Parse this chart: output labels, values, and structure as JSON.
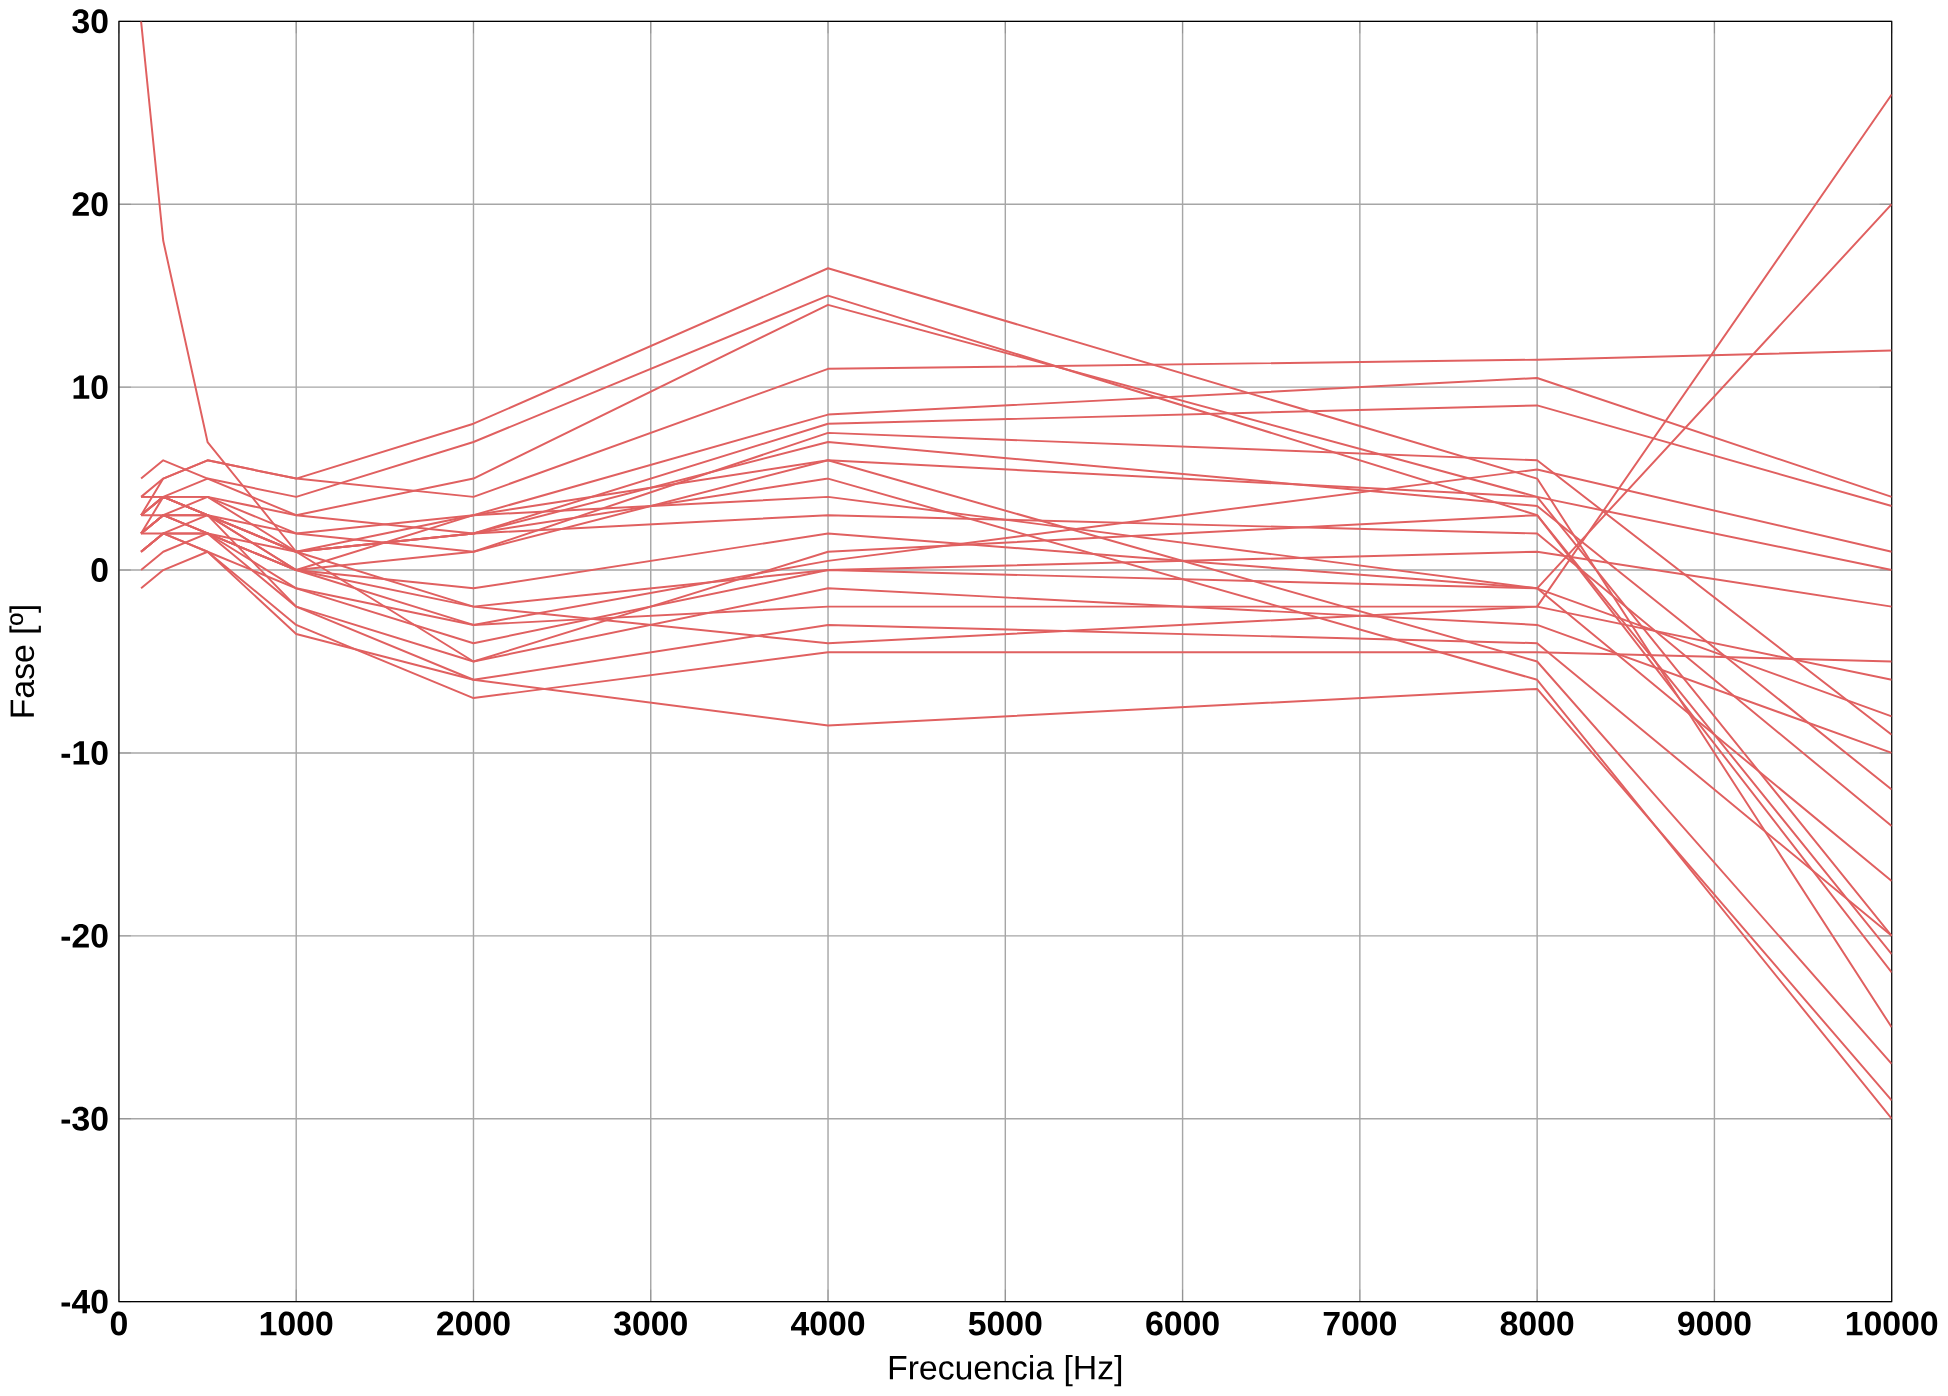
{
  "chart_data": {
    "type": "line",
    "xlabel": "Frecuencia [Hz]",
    "ylabel": "Fase [º]",
    "x": [
      125,
      250,
      500,
      1000,
      2000,
      4000,
      8000,
      10000
    ],
    "xlim": [
      0,
      10000
    ],
    "ylim": [
      -40,
      30
    ],
    "xticks": [
      0,
      1000,
      2000,
      3000,
      4000,
      5000,
      6000,
      7000,
      8000,
      9000,
      10000
    ],
    "yticks": [
      -40,
      -30,
      -20,
      -10,
      0,
      10,
      20,
      30
    ],
    "grid": true,
    "marker": "none",
    "line_style": "solid",
    "series": [
      {
        "color": "#e06060",
        "values": [
          30,
          18,
          7,
          1,
          -2,
          -4,
          -2,
          26
        ]
      },
      {
        "color": "#e06060",
        "values": [
          3,
          5,
          6,
          5,
          8,
          16.5,
          5,
          -25
        ]
      },
      {
        "color": "#e06060",
        "values": [
          2,
          4,
          5,
          4,
          7,
          15,
          3,
          -22
        ]
      },
      {
        "color": "#e06060",
        "values": [
          3,
          4,
          4,
          3,
          5,
          14.5,
          4,
          -20
        ]
      },
      {
        "color": "#e06060",
        "values": [
          4,
          5,
          6,
          5,
          4,
          11,
          11.5,
          12
        ]
      },
      {
        "color": "#e06060",
        "values": [
          2,
          3,
          4,
          2,
          3,
          8.5,
          10.5,
          4
        ]
      },
      {
        "color": "#e06060",
        "values": [
          1,
          2,
          3,
          1,
          2,
          8,
          9,
          3.5
        ]
      },
      {
        "color": "#e06060",
        "values": [
          3,
          4,
          3,
          2,
          1,
          7.5,
          6,
          -9
        ]
      },
      {
        "color": "#e06060",
        "values": [
          5,
          6,
          5,
          3,
          2,
          7,
          3.5,
          -12
        ]
      },
      {
        "color": "#e06060",
        "values": [
          2,
          3,
          2,
          0,
          1,
          6,
          -5,
          -27
        ]
      },
      {
        "color": "#e06060",
        "values": [
          4,
          4,
          3,
          1,
          2,
          5,
          -6,
          -30
        ]
      },
      {
        "color": "#e06060",
        "values": [
          3,
          3,
          2,
          0,
          3,
          4,
          -1,
          20
        ]
      },
      {
        "color": "#e06060",
        "values": [
          1,
          2,
          2,
          1,
          2,
          3,
          2,
          -14
        ]
      },
      {
        "color": "#e06060",
        "values": [
          2,
          3,
          3,
          0,
          -1,
          2,
          -1,
          -17
        ]
      },
      {
        "color": "#e06060",
        "values": [
          3,
          4,
          4,
          1,
          -5,
          1,
          3,
          -21
        ]
      },
      {
        "color": "#e06060",
        "values": [
          2,
          3,
          3,
          0,
          -3,
          0.5,
          5.5,
          1
        ]
      },
      {
        "color": "#e06060",
        "values": [
          1,
          2,
          2,
          -1,
          -4,
          0,
          1,
          -2
        ]
      },
      {
        "color": "#e06060",
        "values": [
          0,
          1,
          2,
          0,
          -2,
          0,
          -1,
          -8
        ]
      },
      {
        "color": "#e06060",
        "values": [
          2,
          3,
          2,
          -2,
          -5,
          -1,
          -3,
          -10
        ]
      },
      {
        "color": "#e06060",
        "values": [
          1,
          2,
          1,
          -1,
          -3,
          -2,
          -2,
          -6
        ]
      },
      {
        "color": "#e06060",
        "values": [
          3,
          4,
          3,
          -2,
          -6,
          -3,
          -4,
          -20
        ]
      },
      {
        "color": "#e06060",
        "values": [
          2,
          2,
          1,
          -3,
          -7,
          -4.5,
          -4.5,
          -5
        ]
      },
      {
        "color": "#e06060",
        "values": [
          -1,
          0,
          1,
          -3.5,
          -6,
          -8.5,
          -6.5,
          -29
        ]
      },
      {
        "color": "#e06060",
        "values": [
          4,
          4,
          3,
          1,
          3,
          6,
          4,
          0
        ]
      }
    ]
  }
}
